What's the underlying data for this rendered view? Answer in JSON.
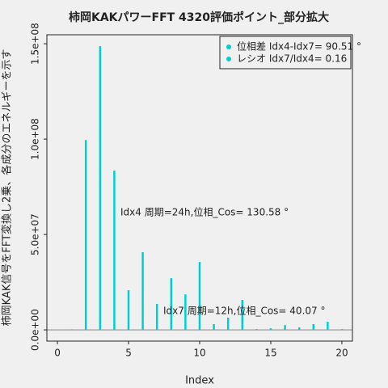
{
  "chart_data": {
    "type": "stem",
    "title": "柿岡KAKパワーFFT 4320評価ポイント_部分拡大",
    "x_label": "Index",
    "y_label": "柿岡KAK信号をFFT変換し2乗、各成分のエネルギーを示す",
    "x": [
      1,
      2,
      3,
      4,
      5,
      6,
      7,
      8,
      9,
      10,
      11,
      12,
      13,
      14,
      15,
      16,
      17,
      18,
      19,
      20
    ],
    "values": [
      200000,
      99500000,
      148700000,
      83500000,
      20800000,
      40700000,
      13600000,
      27100000,
      18600000,
      35600000,
      3000000,
      6400000,
      15700000,
      400000,
      800000,
      2500000,
      1300000,
      3000000,
      4200000,
      400000
    ],
    "color": "#00ced1",
    "xlim": [
      -0.74,
      20.74
    ],
    "xticks": [
      0,
      5,
      10,
      15,
      20
    ],
    "ylim": [
      -5900000,
      154700000
    ],
    "yticks": [
      {
        "value": 0,
        "label": "0.0e+00"
      },
      {
        "value": 50000000,
        "label": "5.0e+07"
      },
      {
        "value": 100000000,
        "label": "1.0e+08"
      },
      {
        "value": 150000000,
        "label": "1.5e+08"
      }
    ],
    "legend": [
      "位相差 Idx4-Idx7= 90.51 °",
      "レシオ Idx7/Idx4= 0.16"
    ],
    "legend_position": "upper right",
    "annotations": [
      "Idx4 周期=24h,位相_Cos= 130.58 °",
      "Idx7 周期=12h,位相_Cos= 40.07 °"
    ]
  }
}
